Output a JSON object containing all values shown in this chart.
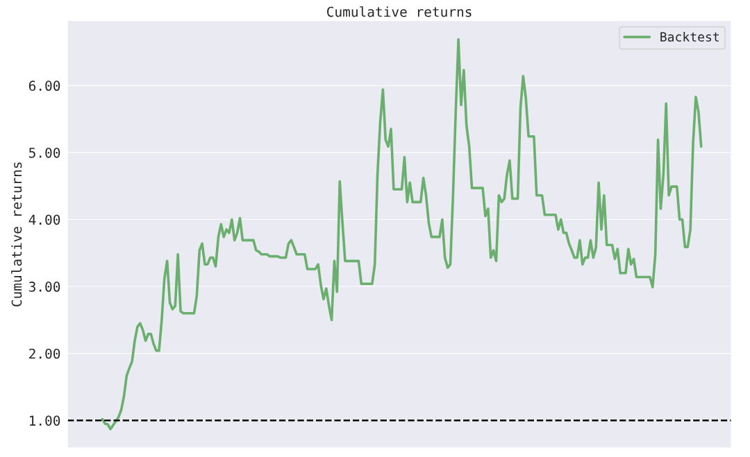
{
  "chart_data": {
    "type": "line",
    "title": "Cumulative returns",
    "ylabel": "Cumulative returns",
    "ylim": [
      0.59,
      6.97
    ],
    "yticks": [
      {
        "value": 1,
        "label": "1.00"
      },
      {
        "value": 2,
        "label": "2.00"
      },
      {
        "value": 3,
        "label": "3.00"
      },
      {
        "value": 4,
        "label": "4.00"
      },
      {
        "value": 5,
        "label": "5.00"
      },
      {
        "value": 6,
        "label": "6.00"
      }
    ],
    "grid": "y",
    "legend": "top right",
    "line_style": "solid",
    "ref_lines": [
      {
        "axis": "y",
        "value": 1,
        "color": "#000000",
        "line_style": "dashed"
      }
    ],
    "categories": [
      null,
      null,
      null,
      null,
      null,
      null,
      null,
      null,
      null,
      null,
      null,
      null,
      null,
      null,
      null,
      null,
      null,
      null,
      null,
      null,
      null,
      null,
      null,
      null,
      null,
      null,
      null,
      null,
      null,
      null,
      null,
      null,
      null,
      null,
      null,
      null,
      null,
      null,
      null,
      null,
      null,
      null,
      null,
      null,
      null,
      null,
      null,
      null,
      null,
      null,
      null,
      null,
      null,
      null,
      null,
      null,
      null,
      null,
      null,
      null,
      null,
      null,
      null,
      null,
      null,
      null,
      null,
      null,
      null,
      null,
      null,
      null,
      null,
      null,
      null,
      null,
      null,
      null,
      null,
      null,
      null,
      null,
      null,
      null,
      null,
      null,
      null,
      null,
      null,
      null,
      null,
      null,
      null,
      null,
      null,
      null,
      null,
      null,
      null,
      null,
      null,
      null,
      null,
      null,
      null,
      null,
      null,
      null,
      null,
      null,
      null,
      null,
      null,
      null,
      null,
      null,
      null,
      null,
      null,
      null,
      null,
      null,
      null,
      null,
      null,
      null,
      null,
      null,
      null,
      null,
      null,
      null,
      null,
      null,
      null,
      null,
      null,
      null,
      null,
      null,
      null,
      null,
      null,
      null,
      null,
      null,
      null,
      null,
      null,
      null,
      null,
      null,
      null,
      null,
      null,
      null,
      null,
      null,
      null,
      null,
      null,
      null,
      null,
      null,
      null,
      null,
      null,
      null,
      null,
      null,
      null,
      null,
      null,
      null,
      null,
      null,
      null,
      null,
      null,
      null,
      null,
      null,
      null,
      null,
      null,
      null,
      null,
      null,
      null,
      null,
      null,
      null,
      null,
      null,
      null,
      null,
      null,
      null,
      null,
      null,
      null,
      null,
      null,
      null,
      null,
      null,
      null,
      null,
      null,
      null,
      null,
      null,
      null,
      null,
      null,
      null,
      null,
      null,
      null,
      null,
      null,
      null,
      null
    ],
    "series": [
      {
        "name": "Backtest",
        "color": "#6aaf6e",
        "values": [
          1.02,
          0.95,
          0.94,
          0.87,
          0.93,
          0.99,
          1.05,
          1.16,
          1.36,
          1.67,
          1.78,
          1.88,
          2.19,
          2.4,
          2.45,
          2.35,
          2.19,
          2.29,
          2.29,
          2.14,
          2.04,
          2.04,
          2.5,
          3.12,
          3.38,
          2.76,
          2.66,
          2.71,
          3.48,
          2.63,
          2.6,
          2.6,
          2.6,
          2.6,
          2.6,
          2.86,
          3.54,
          3.64,
          3.33,
          3.33,
          3.43,
          3.43,
          3.3,
          3.74,
          3.93,
          3.74,
          3.85,
          3.8,
          4.0,
          3.69,
          3.8,
          4.02,
          3.69,
          3.69,
          3.69,
          3.69,
          3.69,
          3.54,
          3.52,
          3.48,
          3.48,
          3.48,
          3.45,
          3.45,
          3.45,
          3.45,
          3.43,
          3.43,
          3.43,
          3.64,
          3.69,
          3.59,
          3.48,
          3.48,
          3.48,
          3.48,
          3.26,
          3.26,
          3.26,
          3.26,
          3.33,
          3.02,
          2.81,
          2.97,
          2.71,
          2.5,
          3.38,
          2.92,
          4.57,
          3.95,
          3.38,
          3.38,
          3.38,
          3.38,
          3.38,
          3.38,
          3.04,
          3.04,
          3.04,
          3.04,
          3.04,
          3.33,
          4.67,
          5.45,
          5.94,
          5.19,
          5.09,
          5.35,
          4.45,
          4.45,
          4.45,
          4.45,
          4.93,
          4.26,
          4.55,
          4.26,
          4.26,
          4.26,
          4.26,
          4.62,
          4.36,
          3.95,
          3.74,
          3.74,
          3.74,
          3.74,
          4.0,
          3.43,
          3.28,
          3.33,
          4.36,
          5.61,
          6.69,
          5.71,
          6.23,
          5.4,
          5.09,
          4.47,
          4.47,
          4.47,
          4.47,
          4.47,
          4.05,
          4.16,
          3.43,
          3.54,
          3.38,
          4.36,
          4.26,
          4.31,
          4.67,
          4.88,
          4.31,
          4.31,
          4.31,
          5.66,
          6.14,
          5.81,
          5.24,
          5.24,
          5.24,
          4.36,
          4.36,
          4.36,
          4.07,
          4.07,
          4.07,
          4.07,
          4.07,
          3.85,
          4.0,
          3.8,
          3.8,
          3.64,
          3.54,
          3.43,
          3.43,
          3.69,
          3.33,
          3.43,
          3.43,
          3.69,
          3.43,
          3.58,
          4.55,
          3.85,
          4.36,
          3.62,
          3.62,
          3.62,
          3.41,
          3.56,
          3.2,
          3.2,
          3.2,
          3.56,
          3.33,
          3.41,
          3.14,
          3.14,
          3.14,
          3.14,
          3.14,
          3.14,
          2.99,
          3.48,
          5.19,
          4.16,
          4.67,
          5.73,
          4.36,
          4.49,
          4.49,
          4.49,
          4.0,
          4.0,
          3.59,
          3.59,
          3.85,
          5.14,
          5.83,
          5.61,
          5.09
        ]
      }
    ]
  }
}
